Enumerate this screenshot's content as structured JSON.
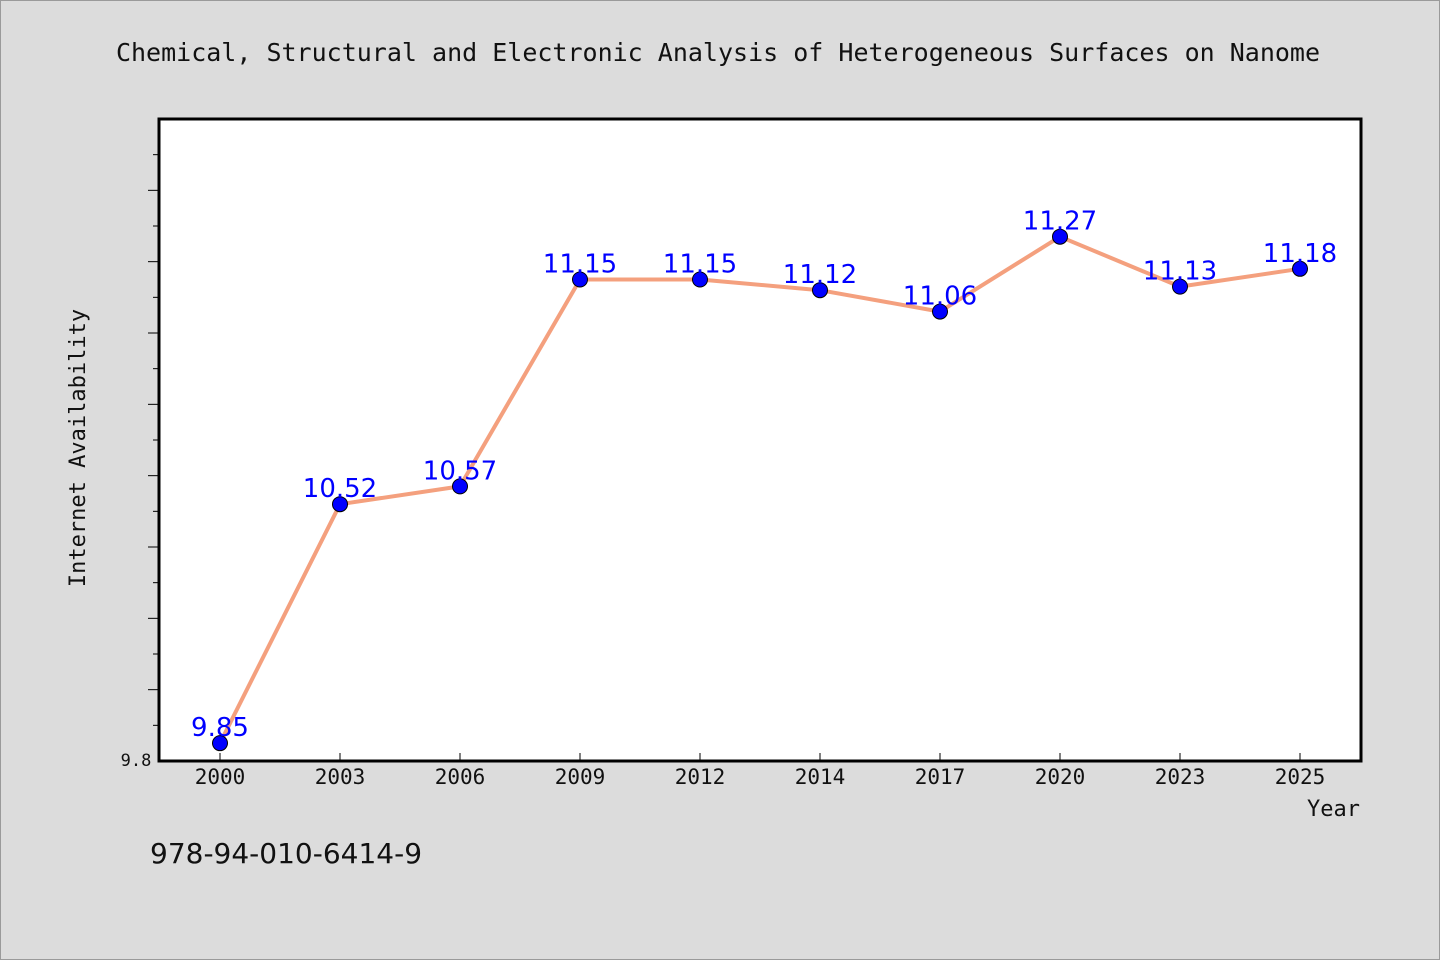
{
  "chart_data": {
    "type": "line",
    "title": "Chemical, Structural and Electronic Analysis of Heterogeneous Surfaces on Nanome",
    "xlabel": "Year",
    "ylabel": "Internet Availability",
    "categories": [
      "2000",
      "2003",
      "2006",
      "2009",
      "2012",
      "2014",
      "2017",
      "2020",
      "2023",
      "2025"
    ],
    "series": [
      {
        "values": [
          9.85,
          10.52,
          10.57,
          11.15,
          11.15,
          11.12,
          11.06,
          11.27,
          11.13,
          11.18
        ],
        "labels": [
          "9.85",
          "10.52",
          "10.57",
          "11.15",
          "11.15",
          "11.12",
          "11.06",
          "11.27",
          "11.13",
          "11.18"
        ]
      }
    ],
    "ylim": [
      9.8,
      11.6
    ],
    "y_tick_labels": [
      "9.8"
    ],
    "grid": false,
    "line_color": "#f4a07e",
    "marker_color": "#0000ff"
  },
  "footer": {
    "isbn": "978-94-010-6414-9"
  }
}
